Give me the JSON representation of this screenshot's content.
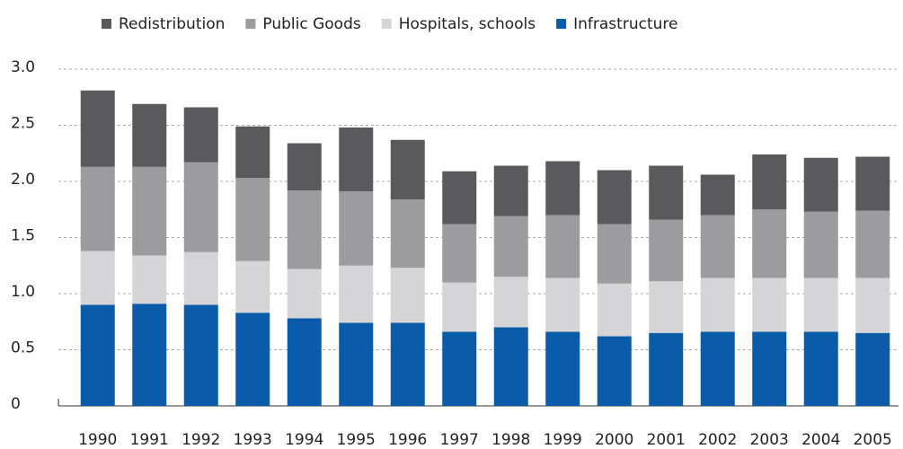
{
  "chart_data": {
    "type": "stacked_bar",
    "categories": [
      "1990",
      "1991",
      "1992",
      "1993",
      "1994",
      "1995",
      "1996",
      "1997",
      "1998",
      "1999",
      "2000",
      "2001",
      "2002",
      "2003",
      "2004",
      "2005"
    ],
    "series": [
      {
        "name": "Redistribution",
        "color": "#5a5a5c",
        "values": [
          0.68,
          0.56,
          0.49,
          0.46,
          0.42,
          0.57,
          0.53,
          0.47,
          0.45,
          0.48,
          0.48,
          0.48,
          0.36,
          0.49,
          0.48,
          0.48
        ]
      },
      {
        "name": "Public Goods",
        "color": "#9c9c9e",
        "values": [
          0.75,
          0.79,
          0.8,
          0.74,
          0.7,
          0.66,
          0.61,
          0.52,
          0.54,
          0.56,
          0.53,
          0.55,
          0.56,
          0.61,
          0.59,
          0.6
        ]
      },
      {
        "name": "Hospitals, schools",
        "color": "#d5d5d7",
        "values": [
          0.48,
          0.43,
          0.47,
          0.46,
          0.44,
          0.51,
          0.49,
          0.44,
          0.45,
          0.48,
          0.47,
          0.46,
          0.48,
          0.48,
          0.48,
          0.49
        ]
      },
      {
        "name": "Infrastructure",
        "color": "#0b5ca8",
        "values": [
          0.9,
          0.91,
          0.9,
          0.83,
          0.78,
          0.74,
          0.74,
          0.66,
          0.7,
          0.66,
          0.62,
          0.65,
          0.66,
          0.66,
          0.66,
          0.65
        ]
      }
    ],
    "ylim": [
      0,
      3
    ],
    "yticks": [
      0,
      0.5,
      {
        "value": 1,
        "label": "1.0"
      },
      1.5,
      {
        "value": 2,
        "label": "2.0"
      },
      2.5,
      {
        "value": 3,
        "label": "3.0"
      }
    ],
    "grid": true
  }
}
